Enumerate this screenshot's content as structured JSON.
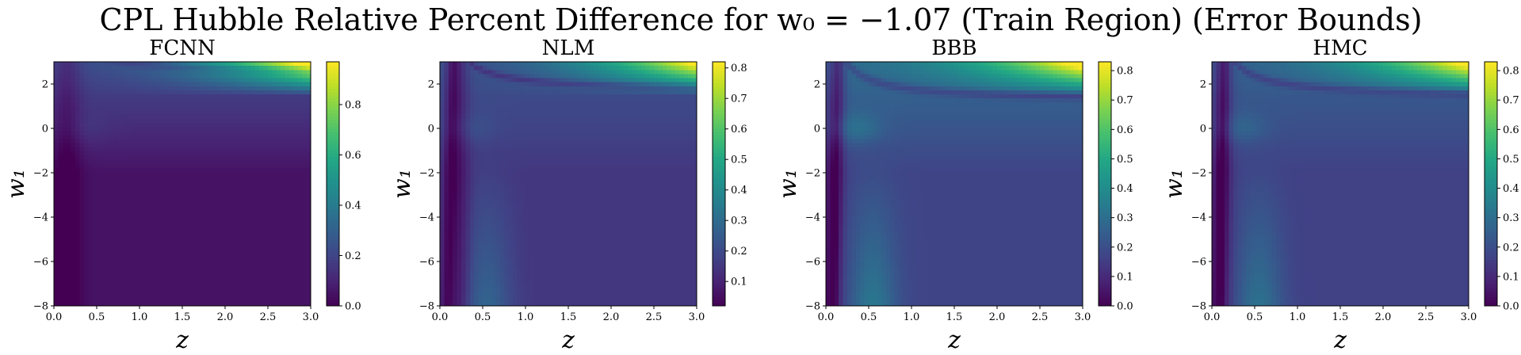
{
  "chart_data": {
    "type": "heatmap",
    "title": "CPL Hubble Relative Percent Difference for w₀ = −1.07 (Train Region) (Error Bounds)",
    "colormap": "viridis",
    "xlabel": "z",
    "ylabel": "w₁",
    "xlim": [
      0.0,
      3.0
    ],
    "ylim": [
      -8,
      3
    ],
    "x_ticks": [
      "0.0",
      "0.5",
      "1.0",
      "1.5",
      "2.0",
      "2.5",
      "3.0"
    ],
    "y_ticks": [
      "−8",
      "−6",
      "−4",
      "−2",
      "0",
      "2"
    ],
    "panels": [
      {
        "title": "FCNN",
        "colorbar_ticks": [
          "0.0",
          "0.2",
          "0.4",
          "0.6",
          "0.8"
        ],
        "vmin": 0.0,
        "vmax": 0.97,
        "model": {
          "base": 0.05,
          "gap": 0.0,
          "band": 0.0,
          "rise": 0.035,
          "corner": 0.92,
          "bump": 0.03,
          "curve_x0": 0.15,
          "curve_y0": 2.6,
          "curve_w": 0.12
        }
      },
      {
        "title": "NLM",
        "colorbar_ticks": [
          "0.1",
          "0.2",
          "0.3",
          "0.4",
          "0.5",
          "0.6",
          "0.7",
          "0.8"
        ],
        "vmin": 0.02,
        "vmax": 0.82,
        "model": {
          "base": 0.15,
          "gap": 0.1,
          "band": 0.13,
          "rise": 0.015,
          "corner": 0.67,
          "bump": 0.04,
          "curve_x0": 0.22,
          "curve_y0": 1.85,
          "curve_w": 0.09
        }
      },
      {
        "title": "BBB",
        "colorbar_ticks": [
          "0.0",
          "0.1",
          "0.2",
          "0.3",
          "0.4",
          "0.5",
          "0.6",
          "0.7",
          "0.8"
        ],
        "vmin": 0.0,
        "vmax": 0.83,
        "model": {
          "base": 0.17,
          "gap": 0.12,
          "band": 0.16,
          "rise": 0.025,
          "corner": 0.66,
          "bump": 0.09,
          "curve_x0": 0.05,
          "curve_y0": 1.45,
          "curve_w": 0.11
        }
      },
      {
        "title": "HMC",
        "colorbar_ticks": [
          "0.0",
          "0.1",
          "0.2",
          "0.3",
          "0.4",
          "0.5",
          "0.6",
          "0.7",
          "0.8"
        ],
        "vmin": 0.0,
        "vmax": 0.83,
        "model": {
          "base": 0.16,
          "gap": 0.11,
          "band": 0.15,
          "rise": 0.02,
          "corner": 0.67,
          "bump": 0.07,
          "curve_x0": 0.1,
          "curve_y0": 1.6,
          "curve_w": 0.1
        }
      }
    ]
  }
}
